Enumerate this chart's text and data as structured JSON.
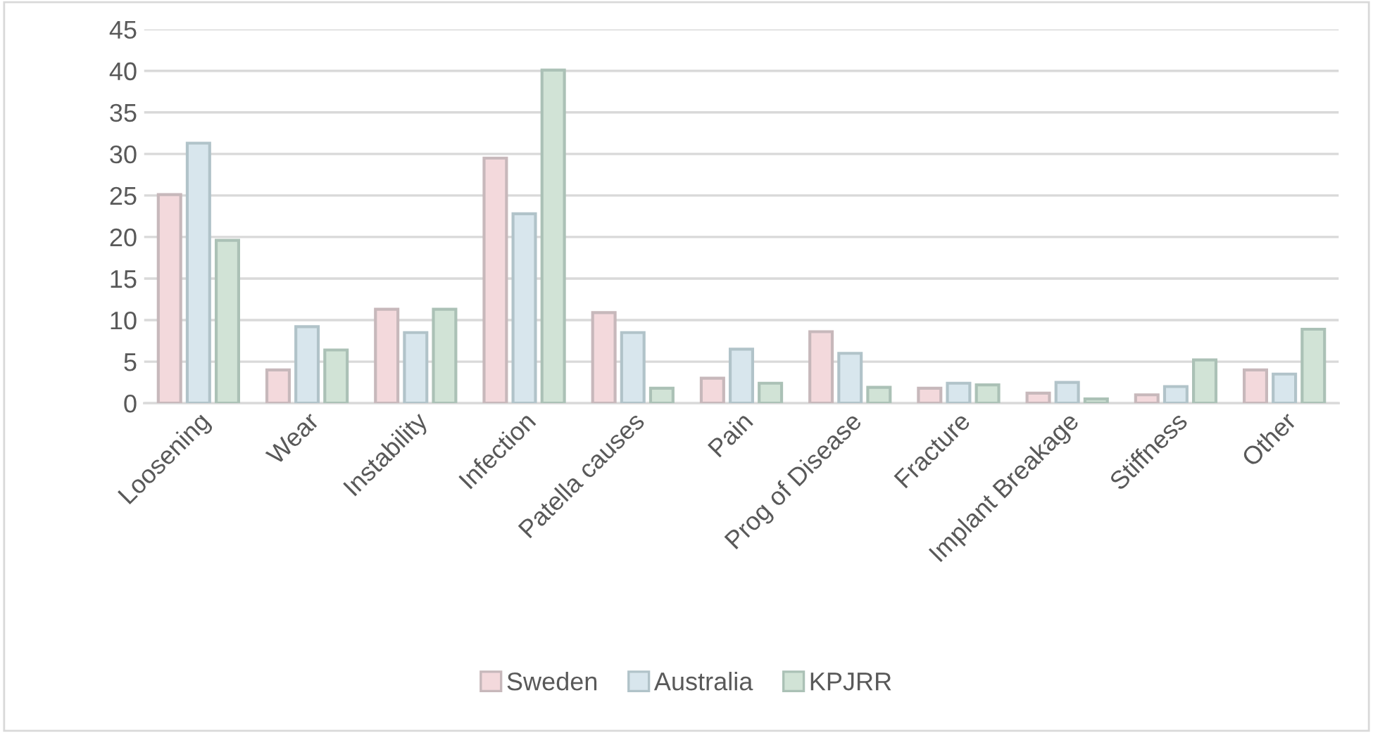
{
  "chart_data": {
    "type": "bar",
    "categories": [
      "Loosening",
      "Wear",
      "Instability",
      "Infection",
      "Patella causes",
      "Pain",
      "Prog of Disease",
      "Fracture",
      "Implant Breakage",
      "Stiffness",
      "Other"
    ],
    "series": [
      {
        "name": "Sweden",
        "color": "#f3d9dc",
        "values": [
          25.1,
          4.0,
          11.3,
          29.5,
          10.9,
          3.0,
          8.6,
          1.8,
          1.2,
          1.0,
          4.0
        ]
      },
      {
        "name": "Australia",
        "color": "#d8e6ed",
        "values": [
          31.3,
          9.2,
          8.5,
          22.8,
          8.5,
          6.5,
          6.0,
          2.4,
          2.5,
          2.0,
          3.5
        ]
      },
      {
        "name": "KPJRR",
        "color": "#d1e3d6",
        "values": [
          19.6,
          6.4,
          11.3,
          40.1,
          1.8,
          2.4,
          1.9,
          2.2,
          0.5,
          5.2,
          8.9
        ]
      }
    ],
    "ylim": [
      0,
      45
    ],
    "yticks": [
      0,
      5,
      10,
      15,
      20,
      25,
      30,
      35,
      40,
      45
    ],
    "grid": "y",
    "legend": "bottom"
  }
}
